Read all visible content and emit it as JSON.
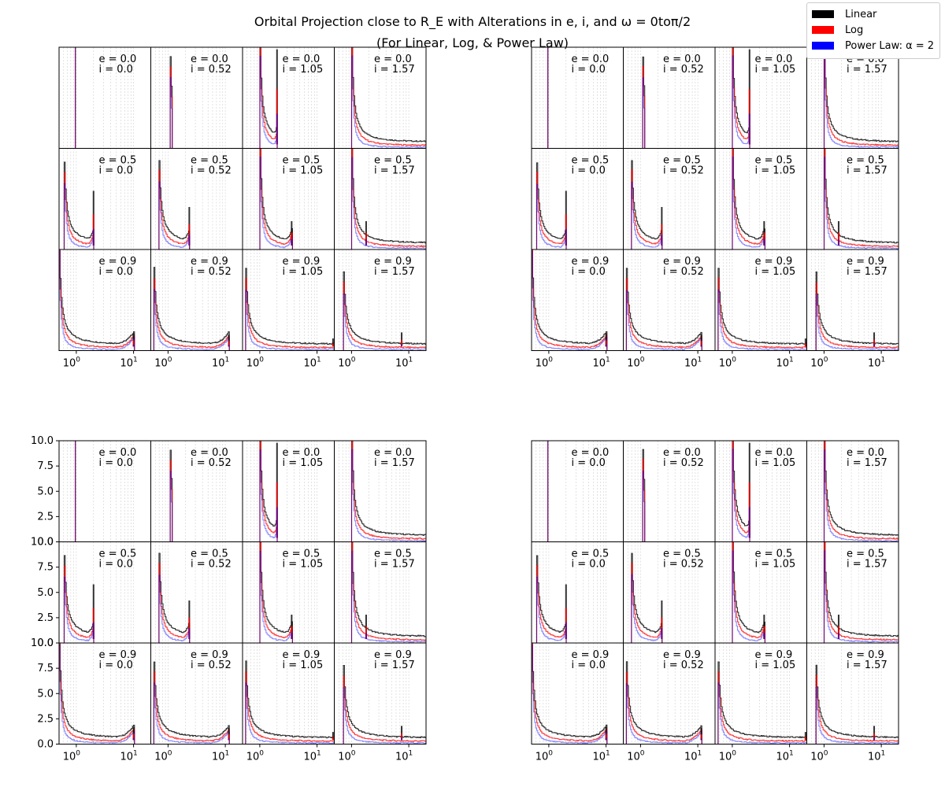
{
  "figure": {
    "title_line1": "Orbital Projection close to R_E with Alterations in e, i, and ω = 0toπ/2",
    "title_line2": "(For Linear, Log, & Power Law)"
  },
  "legend": {
    "items": [
      {
        "label": "Linear",
        "color": "#000000"
      },
      {
        "label": "Log",
        "color": "#ff0000"
      },
      {
        "label": "Power Law: α = 2",
        "color": "#0000ff"
      }
    ]
  },
  "chart_data": {
    "type": "line",
    "layout": "4 groups of 3x4 small-multiple histograms (log x-axis, linear y-axis)",
    "x_scale": "log",
    "xlim": [
      0.5,
      20
    ],
    "ylim": [
      0,
      10
    ],
    "x_tick_labels": [
      "10^0",
      "10^1"
    ],
    "y_tick_labels": [
      "0.0",
      "2.5",
      "5.0",
      "7.5",
      "10.0"
    ],
    "rows": [
      {
        "e": "0.0",
        "label": "e = 0.0"
      },
      {
        "e": "0.5",
        "label": "e = 0.5"
      },
      {
        "e": "0.9",
        "label": "e = 0.9"
      }
    ],
    "cols": [
      {
        "i": "0.0",
        "label": "i = 0.0"
      },
      {
        "i": "0.52",
        "label": "i = 0.52"
      },
      {
        "i": "1.05",
        "label": "i = 1.05"
      },
      {
        "i": "1.57",
        "label": "i = 1.57"
      }
    ],
    "series": [
      {
        "name": "Linear",
        "color": "#000000"
      },
      {
        "name": "Log",
        "color": "#ff0000"
      },
      {
        "name": "Power Law: α = 2",
        "color": "#0000ff"
      }
    ],
    "groups": [
      {
        "position": "top-left",
        "show_x_ticks": true,
        "show_y_ticks": false
      },
      {
        "position": "top-right",
        "show_x_ticks": true,
        "show_y_ticks": false
      },
      {
        "position": "bottom-left",
        "show_x_ticks": true,
        "show_y_ticks": true
      },
      {
        "position": "bottom-right",
        "show_x_ticks": true,
        "show_y_ticks": false
      }
    ],
    "panels": [
      {
        "e": 0.0,
        "i": 0.0,
        "peak_x": [
          0.95
        ],
        "start": 0.95,
        "end": 0.98,
        "spike_x": null,
        "spike_h": 0
      },
      {
        "e": 0.0,
        "i": 0.52,
        "peak_x": [
          1.1
        ],
        "start": 1.07,
        "end": 1.15,
        "spike_x": null,
        "spike_h": 0
      },
      {
        "e": 0.0,
        "i": 1.05,
        "peak_x": [
          1.0
        ],
        "start": 1.0,
        "end": 2.0,
        "spike_x": 2.0,
        "spike_h": 9.8
      },
      {
        "e": 0.0,
        "i": 1.57,
        "peak_x": [
          1.0
        ],
        "start": 1.0,
        "end": 20,
        "spike_x": null,
        "spike_h": 0
      },
      {
        "e": 0.5,
        "i": 0.0,
        "peak_x": [
          0.6
        ],
        "start": 0.6,
        "end": 2.0,
        "spike_x": 2.0,
        "spike_h": 5.8
      },
      {
        "e": 0.5,
        "i": 0.52,
        "peak_x": [
          0.68
        ],
        "start": 0.68,
        "end": 2.35,
        "spike_x": 2.35,
        "spike_h": 4.2
      },
      {
        "e": 0.5,
        "i": 1.05,
        "peak_x": [
          1.0
        ],
        "start": 1.0,
        "end": 3.6,
        "spike_x": 3.6,
        "spike_h": 2.8
      },
      {
        "e": 0.5,
        "i": 1.57,
        "peak_x": [
          1.0
        ],
        "start": 1.0,
        "end": 20,
        "spike_x": 1.8,
        "spike_h": 2.8
      },
      {
        "e": 0.9,
        "i": 0.0,
        "peak_x": [
          0.5
        ],
        "start": 0.5,
        "end": 10,
        "spike_x": 10,
        "spike_h": 1.7
      },
      {
        "e": 0.9,
        "i": 0.52,
        "peak_x": [
          0.55
        ],
        "start": 0.55,
        "end": 11.5,
        "spike_x": 11.5,
        "spike_h": 1.6
      },
      {
        "e": 0.9,
        "i": 1.05,
        "peak_x": [
          0.55
        ],
        "start": 0.55,
        "end": 20,
        "spike_x": 19,
        "spike_h": 1.2
      },
      {
        "e": 0.9,
        "i": 1.57,
        "peak_x": [
          0.75
        ],
        "start": 0.7,
        "end": 20,
        "spike_x": 7.5,
        "spike_h": 1.8
      }
    ]
  }
}
